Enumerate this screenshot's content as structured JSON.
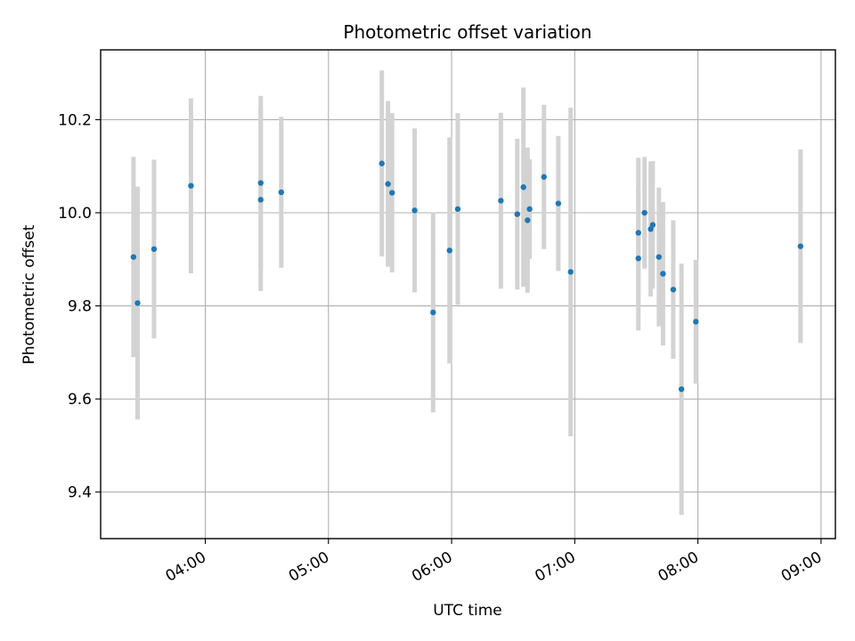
{
  "chart_data": {
    "type": "scatter",
    "title": "Photometric offset variation",
    "xlabel": "UTC time",
    "ylabel": "Photometric offset",
    "x_tick_labels": [
      "04:00",
      "05:00",
      "06:00",
      "07:00",
      "08:00",
      "09:00"
    ],
    "y_tick_labels": [
      "9.4",
      "9.6",
      "9.8",
      "10.0",
      "10.2"
    ],
    "y_ticks": [
      9.4,
      9.6,
      9.8,
      10.0,
      10.2
    ],
    "xlim": [
      "03:09",
      "09:07"
    ],
    "ylim": [
      9.3,
      10.35
    ],
    "grid": true,
    "marker_color": "#1f77b4",
    "errorbar_color": "#d3d3d3",
    "series": [
      {
        "points": [
          {
            "t": "03:25",
            "y": 9.905,
            "err": 0.215
          },
          {
            "t": "03:27",
            "y": 9.806,
            "err": 0.25
          },
          {
            "t": "03:35",
            "y": 9.922,
            "err": 0.192
          },
          {
            "t": "03:53",
            "y": 10.058,
            "err": 0.188
          },
          {
            "t": "04:27",
            "y": 10.064,
            "err": 0.187
          },
          {
            "t": "04:27",
            "y": 10.028,
            "err": 0.196
          },
          {
            "t": "04:37",
            "y": 10.044,
            "err": 0.162
          },
          {
            "t": "05:26",
            "y": 10.106,
            "err": 0.2
          },
          {
            "t": "05:29",
            "y": 10.062,
            "err": 0.178
          },
          {
            "t": "05:31",
            "y": 10.043,
            "err": 0.171
          },
          {
            "t": "05:42",
            "y": 10.005,
            "err": 0.176
          },
          {
            "t": "05:51",
            "y": 9.786,
            "err": 0.215
          },
          {
            "t": "05:59",
            "y": 9.919,
            "err": 0.243
          },
          {
            "t": "06:03",
            "y": 10.008,
            "err": 0.206
          },
          {
            "t": "06:24",
            "y": 10.026,
            "err": 0.189
          },
          {
            "t": "06:32",
            "y": 9.997,
            "err": 0.162
          },
          {
            "t": "06:35",
            "y": 10.055,
            "err": 0.214
          },
          {
            "t": "06:37",
            "y": 9.984,
            "err": 0.156
          },
          {
            "t": "06:38",
            "y": 10.008,
            "err": 0.107
          },
          {
            "t": "06:45",
            "y": 10.077,
            "err": 0.155
          },
          {
            "t": "06:52",
            "y": 10.02,
            "err": 0.145
          },
          {
            "t": "06:58",
            "y": 9.873,
            "err": 0.353
          },
          {
            "t": "07:31",
            "y": 9.902,
            "err": 0.155
          },
          {
            "t": "07:31",
            "y": 9.957,
            "err": 0.161
          },
          {
            "t": "07:34",
            "y": 10.0,
            "err": 0.12
          },
          {
            "t": "07:37",
            "y": 9.965,
            "err": 0.145
          },
          {
            "t": "07:38",
            "y": 9.974,
            "err": 0.137
          },
          {
            "t": "07:41",
            "y": 9.905,
            "err": 0.149
          },
          {
            "t": "07:43",
            "y": 9.869,
            "err": 0.154
          },
          {
            "t": "07:48",
            "y": 9.835,
            "err": 0.149
          },
          {
            "t": "07:52",
            "y": 9.621,
            "err": 0.27
          },
          {
            "t": "07:59",
            "y": 9.766,
            "err": 0.133
          },
          {
            "t": "08:50",
            "y": 9.928,
            "err": 0.208
          }
        ]
      }
    ]
  }
}
